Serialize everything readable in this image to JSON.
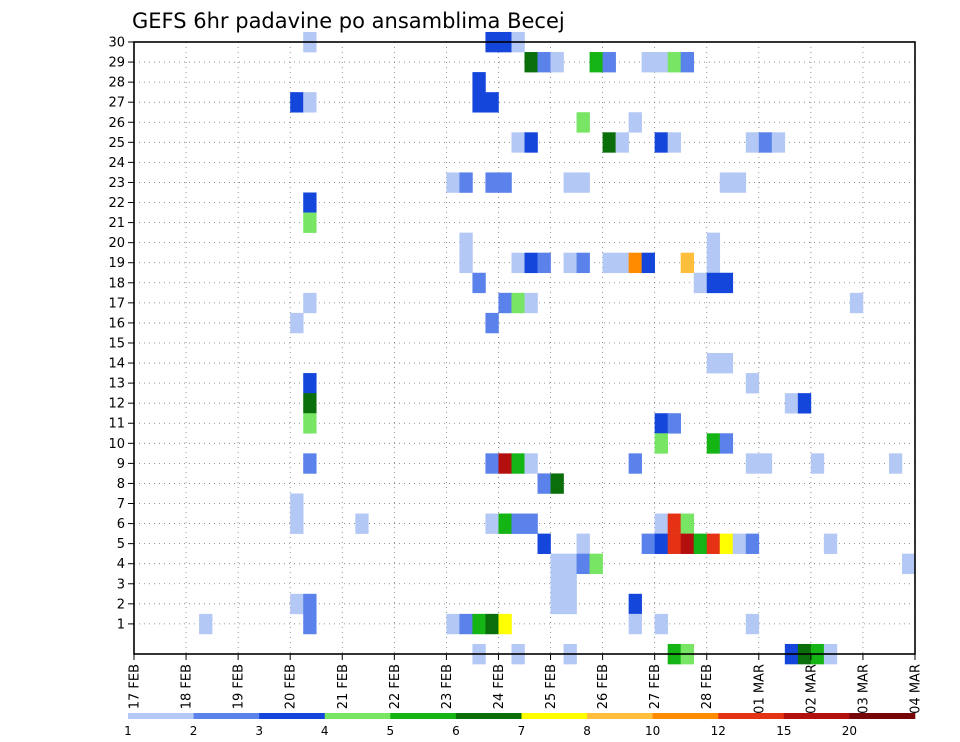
{
  "chart_data": {
    "type": "heatmap",
    "title": "GEFS 6hr padavine po ansamblima Becej",
    "xlabel": "",
    "ylabel": "",
    "x_tick_labels": [
      "17 FEB",
      "18 FEB",
      "19 FEB",
      "20 FEB",
      "21 FEB",
      "22 FEB",
      "23 FEB",
      "24 FEB",
      "25 FEB",
      "26 FEB",
      "27 FEB",
      "28 FEB",
      "01 MAR",
      "02 MAR",
      "03 MAR",
      "04 MAR"
    ],
    "y_tick_labels": [
      "1",
      "2",
      "3",
      "4",
      "5",
      "6",
      "7",
      "8",
      "9",
      "10",
      "11",
      "12",
      "13",
      "14",
      "15",
      "16",
      "17",
      "18",
      "19",
      "20",
      "21",
      "22",
      "23",
      "24",
      "25",
      "26",
      "27",
      "28",
      "29",
      "30"
    ],
    "ylim": [
      0,
      30
    ],
    "x_steps": 60,
    "step_hours": 6,
    "grid": true,
    "colorbar": {
      "levels": [
        "1",
        "2",
        "3",
        "4",
        "5",
        "6",
        "7",
        "8",
        "10",
        "12",
        "15",
        "20"
      ],
      "colors": [
        "#b4c8f5",
        "#5a82ea",
        "#1446dc",
        "#78e664",
        "#14b414",
        "#0a6e0a",
        "#ffff00",
        "#ffbe3c",
        "#ff8c00",
        "#e63214",
        "#b40f0f",
        "#780505"
      ]
    },
    "cells": [
      {
        "m": 30,
        "s": 13,
        "c": 0
      },
      {
        "m": 30,
        "s": 27,
        "c": 2
      },
      {
        "m": 30,
        "s": 28,
        "c": 2
      },
      {
        "m": 30,
        "s": 29,
        "c": 0
      },
      {
        "m": 29,
        "s": 30,
        "c": 5
      },
      {
        "m": 29,
        "s": 31,
        "c": 1
      },
      {
        "m": 29,
        "s": 32,
        "c": 0
      },
      {
        "m": 29,
        "s": 35,
        "c": 4
      },
      {
        "m": 29,
        "s": 36,
        "c": 1
      },
      {
        "m": 29,
        "s": 39,
        "c": 0
      },
      {
        "m": 29,
        "s": 40,
        "c": 0
      },
      {
        "m": 29,
        "s": 41,
        "c": 3
      },
      {
        "m": 29,
        "s": 42,
        "c": 1
      },
      {
        "m": 28,
        "s": 26,
        "c": 2
      },
      {
        "m": 27,
        "s": 12,
        "c": 2
      },
      {
        "m": 27,
        "s": 13,
        "c": 0
      },
      {
        "m": 27,
        "s": 26,
        "c": 2
      },
      {
        "m": 27,
        "s": 27,
        "c": 2
      },
      {
        "m": 26,
        "s": 34,
        "c": 3
      },
      {
        "m": 26,
        "s": 38,
        "c": 0
      },
      {
        "m": 25,
        "s": 29,
        "c": 0
      },
      {
        "m": 25,
        "s": 30,
        "c": 2
      },
      {
        "m": 25,
        "s": 36,
        "c": 5
      },
      {
        "m": 25,
        "s": 37,
        "c": 0
      },
      {
        "m": 25,
        "s": 40,
        "c": 2
      },
      {
        "m": 25,
        "s": 41,
        "c": 0
      },
      {
        "m": 25,
        "s": 47,
        "c": 0
      },
      {
        "m": 25,
        "s": 48,
        "c": 1
      },
      {
        "m": 25,
        "s": 49,
        "c": 0
      },
      {
        "m": 23,
        "s": 24,
        "c": 0
      },
      {
        "m": 23,
        "s": 25,
        "c": 1
      },
      {
        "m": 23,
        "s": 27,
        "c": 1
      },
      {
        "m": 23,
        "s": 28,
        "c": 1
      },
      {
        "m": 23,
        "s": 33,
        "c": 0
      },
      {
        "m": 23,
        "s": 34,
        "c": 0
      },
      {
        "m": 23,
        "s": 45,
        "c": 0
      },
      {
        "m": 23,
        "s": 46,
        "c": 0
      },
      {
        "m": 22,
        "s": 13,
        "c": 2
      },
      {
        "m": 21,
        "s": 13,
        "c": 3
      },
      {
        "m": 20,
        "s": 25,
        "c": 0
      },
      {
        "m": 20,
        "s": 44,
        "c": 0
      },
      {
        "m": 19,
        "s": 25,
        "c": 0
      },
      {
        "m": 19,
        "s": 29,
        "c": 0
      },
      {
        "m": 19,
        "s": 30,
        "c": 2
      },
      {
        "m": 19,
        "s": 31,
        "c": 1
      },
      {
        "m": 19,
        "s": 33,
        "c": 0
      },
      {
        "m": 19,
        "s": 34,
        "c": 1
      },
      {
        "m": 19,
        "s": 36,
        "c": 0
      },
      {
        "m": 19,
        "s": 37,
        "c": 0
      },
      {
        "m": 19,
        "s": 38,
        "c": 8
      },
      {
        "m": 19,
        "s": 39,
        "c": 2
      },
      {
        "m": 19,
        "s": 42,
        "c": 7
      },
      {
        "m": 19,
        "s": 44,
        "c": 0
      },
      {
        "m": 18,
        "s": 26,
        "c": 1
      },
      {
        "m": 18,
        "s": 43,
        "c": 0
      },
      {
        "m": 18,
        "s": 44,
        "c": 2
      },
      {
        "m": 18,
        "s": 45,
        "c": 2
      },
      {
        "m": 17,
        "s": 13,
        "c": 0
      },
      {
        "m": 17,
        "s": 28,
        "c": 1
      },
      {
        "m": 17,
        "s": 29,
        "c": 3
      },
      {
        "m": 17,
        "s": 30,
        "c": 0
      },
      {
        "m": 17,
        "s": 55,
        "c": 0
      },
      {
        "m": 16,
        "s": 12,
        "c": 0
      },
      {
        "m": 16,
        "s": 27,
        "c": 1
      },
      {
        "m": 14,
        "s": 44,
        "c": 0
      },
      {
        "m": 14,
        "s": 45,
        "c": 0
      },
      {
        "m": 13,
        "s": 13,
        "c": 2
      },
      {
        "m": 13,
        "s": 47,
        "c": 0
      },
      {
        "m": 12,
        "s": 13,
        "c": 5
      },
      {
        "m": 12,
        "s": 50,
        "c": 0
      },
      {
        "m": 12,
        "s": 51,
        "c": 2
      },
      {
        "m": 11,
        "s": 13,
        "c": 3
      },
      {
        "m": 11,
        "s": 40,
        "c": 2
      },
      {
        "m": 11,
        "s": 41,
        "c": 1
      },
      {
        "m": 10,
        "s": 40,
        "c": 3
      },
      {
        "m": 10,
        "s": 44,
        "c": 4
      },
      {
        "m": 10,
        "s": 45,
        "c": 1
      },
      {
        "m": 9,
        "s": 13,
        "c": 1
      },
      {
        "m": 9,
        "s": 27,
        "c": 1
      },
      {
        "m": 9,
        "s": 28,
        "c": 10
      },
      {
        "m": 9,
        "s": 29,
        "c": 4
      },
      {
        "m": 9,
        "s": 30,
        "c": 0
      },
      {
        "m": 9,
        "s": 38,
        "c": 1
      },
      {
        "m": 9,
        "s": 47,
        "c": 0
      },
      {
        "m": 9,
        "s": 48,
        "c": 0
      },
      {
        "m": 9,
        "s": 52,
        "c": 0
      },
      {
        "m": 9,
        "s": 58,
        "c": 0
      },
      {
        "m": 8,
        "s": 31,
        "c": 1
      },
      {
        "m": 8,
        "s": 32,
        "c": 5
      },
      {
        "m": 7,
        "s": 12,
        "c": 0
      },
      {
        "m": 6,
        "s": 12,
        "c": 0
      },
      {
        "m": 6,
        "s": 17,
        "c": 0
      },
      {
        "m": 6,
        "s": 27,
        "c": 0
      },
      {
        "m": 6,
        "s": 28,
        "c": 4
      },
      {
        "m": 6,
        "s": 29,
        "c": 1
      },
      {
        "m": 6,
        "s": 30,
        "c": 1
      },
      {
        "m": 6,
        "s": 40,
        "c": 0
      },
      {
        "m": 6,
        "s": 41,
        "c": 9
      },
      {
        "m": 6,
        "s": 42,
        "c": 3
      },
      {
        "m": 5,
        "s": 31,
        "c": 2
      },
      {
        "m": 5,
        "s": 34,
        "c": 0
      },
      {
        "m": 5,
        "s": 39,
        "c": 1
      },
      {
        "m": 5,
        "s": 40,
        "c": 2
      },
      {
        "m": 5,
        "s": 41,
        "c": 9
      },
      {
        "m": 5,
        "s": 42,
        "c": 10
      },
      {
        "m": 5,
        "s": 43,
        "c": 4
      },
      {
        "m": 5,
        "s": 44,
        "c": 9
      },
      {
        "m": 5,
        "s": 45,
        "c": 6
      },
      {
        "m": 5,
        "s": 46,
        "c": 0
      },
      {
        "m": 5,
        "s": 47,
        "c": 1
      },
      {
        "m": 5,
        "s": 53,
        "c": 0
      },
      {
        "m": 4,
        "s": 32,
        "c": 0
      },
      {
        "m": 4,
        "s": 33,
        "c": 0
      },
      {
        "m": 4,
        "s": 34,
        "c": 1
      },
      {
        "m": 4,
        "s": 35,
        "c": 3
      },
      {
        "m": 4,
        "s": 59,
        "c": 0
      },
      {
        "m": 3,
        "s": 32,
        "c": 0
      },
      {
        "m": 3,
        "s": 33,
        "c": 0
      },
      {
        "m": 2,
        "s": 12,
        "c": 0
      },
      {
        "m": 2,
        "s": 13,
        "c": 1
      },
      {
        "m": 2,
        "s": 32,
        "c": 0
      },
      {
        "m": 2,
        "s": 33,
        "c": 0
      },
      {
        "m": 2,
        "s": 38,
        "c": 2
      },
      {
        "m": 1,
        "s": 5,
        "c": 0
      },
      {
        "m": 1,
        "s": 13,
        "c": 1
      },
      {
        "m": 1,
        "s": 24,
        "c": 0
      },
      {
        "m": 1,
        "s": 25,
        "c": 1
      },
      {
        "m": 1,
        "s": 26,
        "c": 4
      },
      {
        "m": 1,
        "s": 27,
        "c": 5
      },
      {
        "m": 1,
        "s": 28,
        "c": 6
      },
      {
        "m": 1,
        "s": 38,
        "c": 0
      },
      {
        "m": 1,
        "s": 40,
        "c": 0
      },
      {
        "m": 1,
        "s": 47,
        "c": 0
      },
      {
        "m": 0,
        "s": 26,
        "c": 0
      },
      {
        "m": 0,
        "s": 29,
        "c": 0
      },
      {
        "m": 0,
        "s": 33,
        "c": 0
      },
      {
        "m": 0,
        "s": 41,
        "c": 4
      },
      {
        "m": 0,
        "s": 42,
        "c": 3
      },
      {
        "m": 0,
        "s": 50,
        "c": 2
      },
      {
        "m": 0,
        "s": 51,
        "c": 5
      },
      {
        "m": 0,
        "s": 52,
        "c": 4
      },
      {
        "m": 0,
        "s": 53,
        "c": 0
      }
    ]
  }
}
